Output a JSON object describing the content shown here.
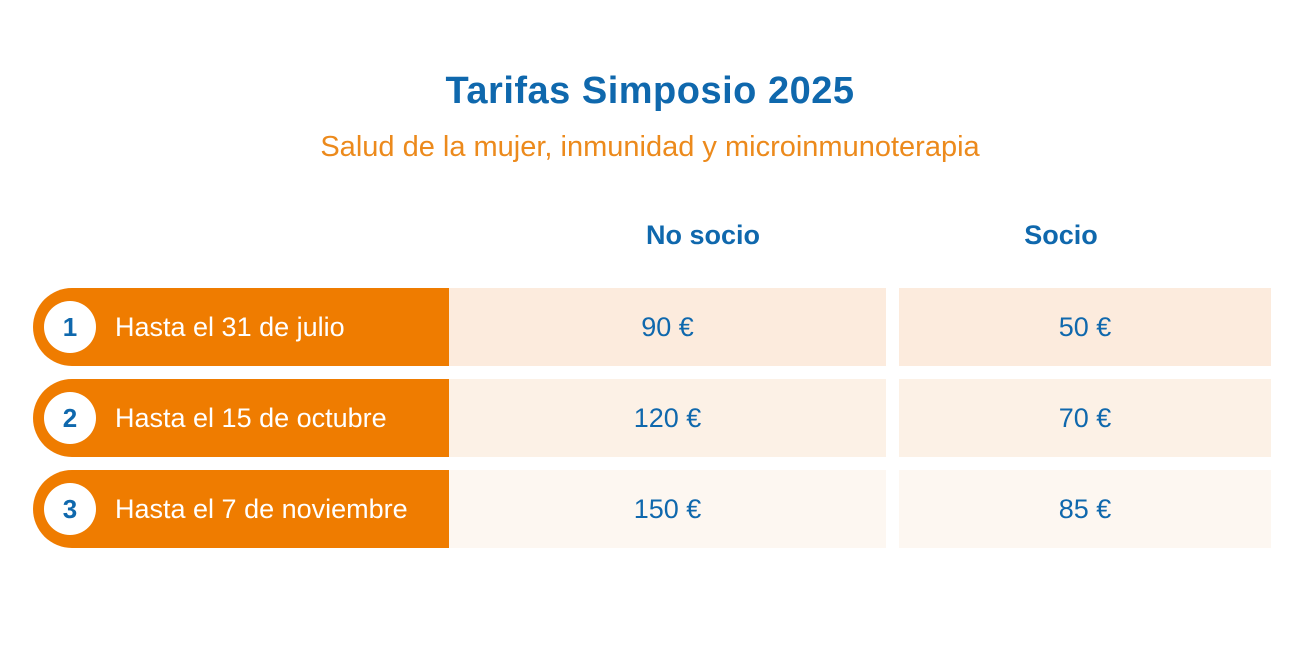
{
  "header": {
    "title": "Tarifas Simposio 2025",
    "subtitle": "Salud de la mujer, inmunidad y microinmunoterapia"
  },
  "table": {
    "columns": [
      "No socio",
      "Socio"
    ],
    "rows": [
      {
        "number": "1",
        "label": "Hasta el 31 de julio",
        "no_socio": "90 €",
        "socio": "50 €"
      },
      {
        "number": "2",
        "label": "Hasta el 15 de octubre",
        "no_socio": "120 €",
        "socio": "70 €"
      },
      {
        "number": "3",
        "label": "Hasta el 7 de noviembre",
        "no_socio": "150 €",
        "socio": "85 €"
      }
    ]
  },
  "colors": {
    "title_blue": "#0f68ad",
    "subtitle_orange": "#ec8a1c",
    "label_orange": "#ef7c00",
    "cell_row1": "#fcebdd",
    "cell_row2": "#fcf1e6",
    "cell_row3": "#fdf7f1"
  }
}
